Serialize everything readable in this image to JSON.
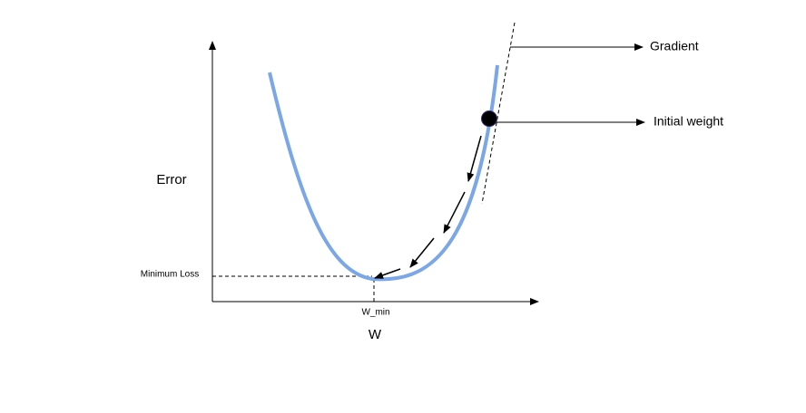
{
  "labels": {
    "y_axis": "Error",
    "x_axis": "W",
    "min_loss": "Minimum Loss",
    "w_min": "W_min",
    "gradient": "Gradient",
    "initial_weight": "Initial weight"
  }
}
